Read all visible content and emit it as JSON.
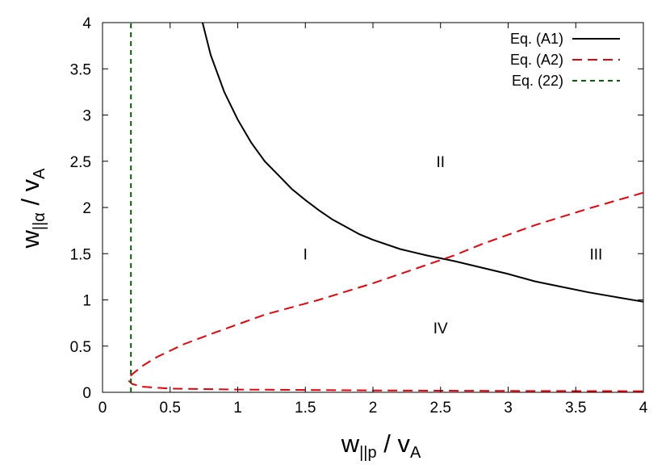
{
  "chart_data": {
    "type": "line",
    "xlabel": {
      "main": "w",
      "sub": "||p",
      "rest": " / v",
      "rest_sub": "A"
    },
    "ylabel": {
      "main": "w",
      "sub": "||α",
      "rest": " / v",
      "rest_sub": "A"
    },
    "xlim": [
      0,
      4
    ],
    "ylim": [
      0,
      4
    ],
    "x_ticks": [
      0,
      0.5,
      1,
      1.5,
      2,
      2.5,
      3,
      3.5,
      4
    ],
    "x_tick_labels": [
      "0",
      "0.5",
      "1",
      "1.5",
      "2",
      "2.5",
      "3",
      "3.5",
      "4"
    ],
    "y_ticks": [
      0,
      0.5,
      1,
      1.5,
      2,
      2.5,
      3,
      3.5,
      4
    ],
    "y_tick_labels": [
      "0",
      "0.5",
      "1",
      "1.5",
      "2",
      "2.5",
      "3",
      "3.5",
      "4"
    ],
    "grid": false,
    "legend_position": "top-right",
    "series": [
      {
        "name": "Eq. (A1)",
        "color": "#000000",
        "dash": "solid",
        "points": [
          [
            0.74,
            4.0
          ],
          [
            0.8,
            3.65
          ],
          [
            0.9,
            3.25
          ],
          [
            1.0,
            2.95
          ],
          [
            1.1,
            2.7
          ],
          [
            1.2,
            2.5
          ],
          [
            1.3,
            2.35
          ],
          [
            1.4,
            2.2
          ],
          [
            1.5,
            2.08
          ],
          [
            1.6,
            1.97
          ],
          [
            1.7,
            1.87
          ],
          [
            1.8,
            1.79
          ],
          [
            1.9,
            1.71
          ],
          [
            2.0,
            1.65
          ],
          [
            2.2,
            1.55
          ],
          [
            2.4,
            1.48
          ],
          [
            2.6,
            1.42
          ],
          [
            2.8,
            1.35
          ],
          [
            3.0,
            1.28
          ],
          [
            3.2,
            1.2
          ],
          [
            3.4,
            1.14
          ],
          [
            3.6,
            1.08
          ],
          [
            3.8,
            1.03
          ],
          [
            4.0,
            0.98
          ]
        ]
      },
      {
        "name": "Eq. (A2)",
        "color": "#e8000b",
        "dash": "long",
        "points": [
          [
            4.0,
            2.16
          ],
          [
            3.6,
            1.99
          ],
          [
            3.2,
            1.81
          ],
          [
            2.8,
            1.6
          ],
          [
            2.6,
            1.48
          ],
          [
            2.4,
            1.38
          ],
          [
            2.0,
            1.18
          ],
          [
            1.6,
            1.0
          ],
          [
            1.2,
            0.84
          ],
          [
            0.8,
            0.63
          ],
          [
            0.6,
            0.52
          ],
          [
            0.4,
            0.38
          ],
          [
            0.3,
            0.29
          ],
          [
            0.24,
            0.22
          ],
          [
            0.2,
            0.17
          ],
          [
            0.19,
            0.13
          ],
          [
            0.22,
            0.09
          ],
          [
            0.3,
            0.06
          ],
          [
            0.5,
            0.04
          ],
          [
            1.0,
            0.03
          ],
          [
            1.5,
            0.025
          ],
          [
            2.0,
            0.02
          ],
          [
            3.0,
            0.015
          ],
          [
            4.0,
            0.012
          ]
        ]
      },
      {
        "name": "Eq. (22)",
        "color": "#006400",
        "dash": "short",
        "points": [
          [
            0.21,
            0.0
          ],
          [
            0.21,
            4.0
          ]
        ]
      }
    ],
    "annotations": [
      {
        "text": "I",
        "x": 1.5,
        "y": 1.5
      },
      {
        "text": "II",
        "x": 2.5,
        "y": 2.5
      },
      {
        "text": "III",
        "x": 3.65,
        "y": 1.5
      },
      {
        "text": "IV",
        "x": 2.5,
        "y": 0.7
      }
    ]
  }
}
